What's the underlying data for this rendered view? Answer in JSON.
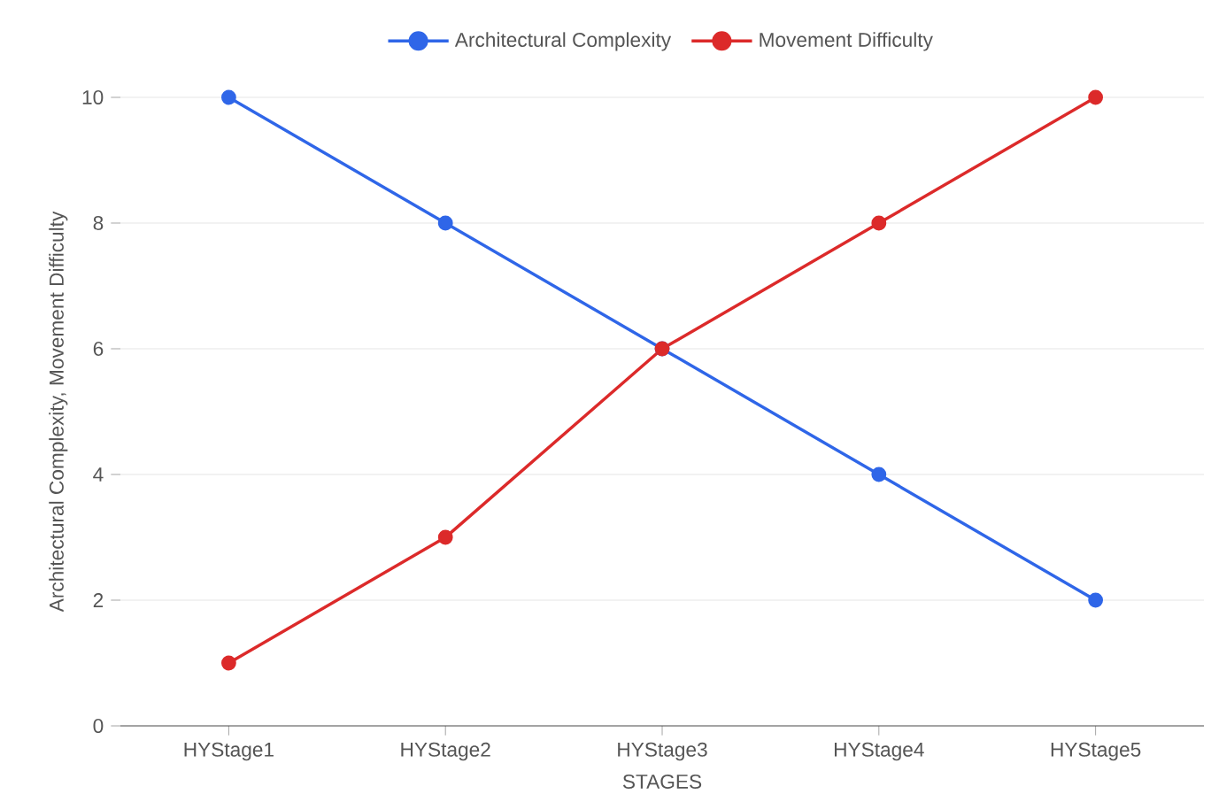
{
  "chart_data": {
    "type": "line",
    "xlabel": "STAGES",
    "ylabel": "Architectural Complexity, Movement Difficulty",
    "categories": [
      "HYStage1",
      "HYStage2",
      "HYStage3",
      "HYStage4",
      "HYStage5"
    ],
    "series": [
      {
        "name": "Architectural Complexity",
        "color": "#2f66e8",
        "values": [
          10,
          8,
          6,
          4,
          2
        ]
      },
      {
        "name": "Movement Difficulty",
        "color": "#dc2a2a",
        "values": [
          1,
          3,
          6,
          8,
          10
        ]
      }
    ],
    "ylim": [
      0,
      10
    ],
    "yticks": [
      0,
      2,
      4,
      6,
      8,
      10
    ],
    "grid": "y",
    "legend": "top",
    "marker": "circle",
    "line_style": "solid"
  }
}
